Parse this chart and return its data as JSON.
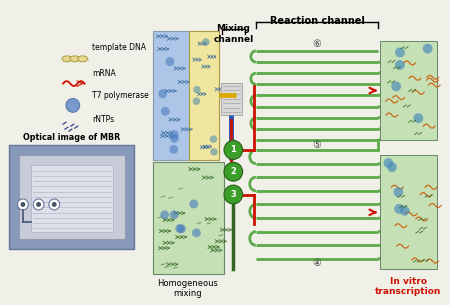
{
  "bg_color": "#f0efe8",
  "green_channel_color": "#5aaa48",
  "light_green_bg": "#c5e0b4",
  "blue_bg": "#adc6e8",
  "yellow_bg": "#f0e6a0",
  "mixing_channel_label": "Mixing\nchannel",
  "reaction_channel_label": "Reaction channel",
  "homogeneous_label": "Homogeneous\nmixing",
  "invitro_label": "In vitro\ntranscription",
  "optical_label": "Optical image of MBR",
  "legend_template": "template DNA",
  "legend_mrna": "mRNA",
  "legend_t7": "T7 polymerase",
  "legend_rntps": "rNTPs",
  "red_color": "#cc1100",
  "blue_inlet_color": "#2255bb",
  "yellow_inlet_color": "#ddaa00",
  "circle_green": "#3a9e28"
}
